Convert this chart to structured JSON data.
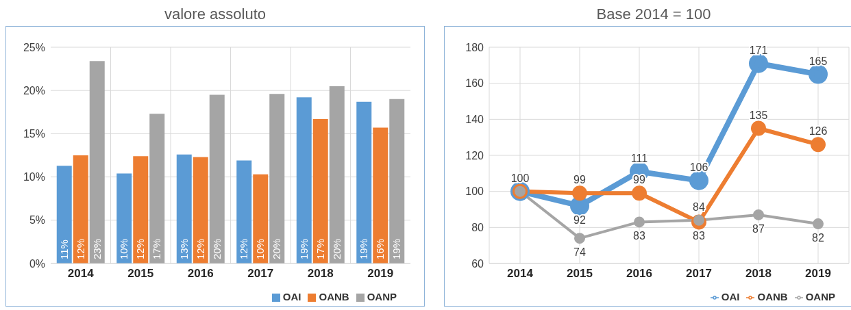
{
  "chart_data": [
    {
      "type": "bar",
      "title": "valore assoluto",
      "categories": [
        "2014",
        "2015",
        "2016",
        "2017",
        "2018",
        "2019"
      ],
      "series": [
        {
          "name": "OAI",
          "color": "#5b9bd5",
          "values": [
            11.3,
            10.4,
            12.6,
            11.9,
            19.2,
            18.7
          ],
          "value_labels": [
            "11%",
            "10%",
            "13%",
            "12%",
            "19%",
            "19%"
          ]
        },
        {
          "name": "OANB",
          "color": "#ed7d31",
          "values": [
            12.5,
            12.4,
            12.3,
            10.3,
            16.7,
            15.7
          ],
          "value_labels": [
            "12%",
            "12%",
            "12%",
            "10%",
            "17%",
            "16%"
          ]
        },
        {
          "name": "OANP",
          "color": "#a5a5a5",
          "values": [
            23.4,
            17.3,
            19.5,
            19.6,
            20.5,
            19.0
          ],
          "value_labels": [
            "23%",
            "17%",
            "20%",
            "20%",
            "20%",
            "19%"
          ]
        }
      ],
      "ylim": [
        0,
        25
      ],
      "yticks": [
        {
          "value": 0,
          "label": "0%"
        },
        {
          "value": 5,
          "label": "5%"
        },
        {
          "value": 10,
          "label": "10%"
        },
        {
          "value": 15,
          "label": "15%"
        },
        {
          "value": 20,
          "label": "20%"
        },
        {
          "value": 25,
          "label": "25%"
        }
      ],
      "grid": true,
      "legend": "bottom right"
    },
    {
      "type": "line",
      "title": "Base 2014 = 100",
      "categories": [
        "2014",
        "2015",
        "2016",
        "2017",
        "2018",
        "2019"
      ],
      "series": [
        {
          "name": "OAI",
          "color": "#5b9bd5",
          "values": [
            100,
            92,
            111,
            106,
            171,
            165
          ],
          "value_labels": [
            "100",
            "92",
            "111",
            "106",
            "171",
            "165"
          ]
        },
        {
          "name": "OANB",
          "color": "#ed7d31",
          "values": [
            100,
            99,
            99,
            83,
            135,
            126
          ],
          "value_labels": [
            null,
            "99",
            "99",
            "83",
            "135",
            "126"
          ]
        },
        {
          "name": "OANP",
          "color": "#a5a5a5",
          "values": [
            100,
            74,
            83,
            84,
            87,
            82
          ],
          "value_labels": [
            null,
            "74",
            "83",
            "84",
            "87",
            "82"
          ]
        }
      ],
      "ylim": [
        60,
        180
      ],
      "yticks": [
        60,
        80,
        100,
        120,
        140,
        160,
        180
      ],
      "grid": true,
      "legend": "bottom right",
      "marker": "circle",
      "line_style": "solid"
    }
  ]
}
